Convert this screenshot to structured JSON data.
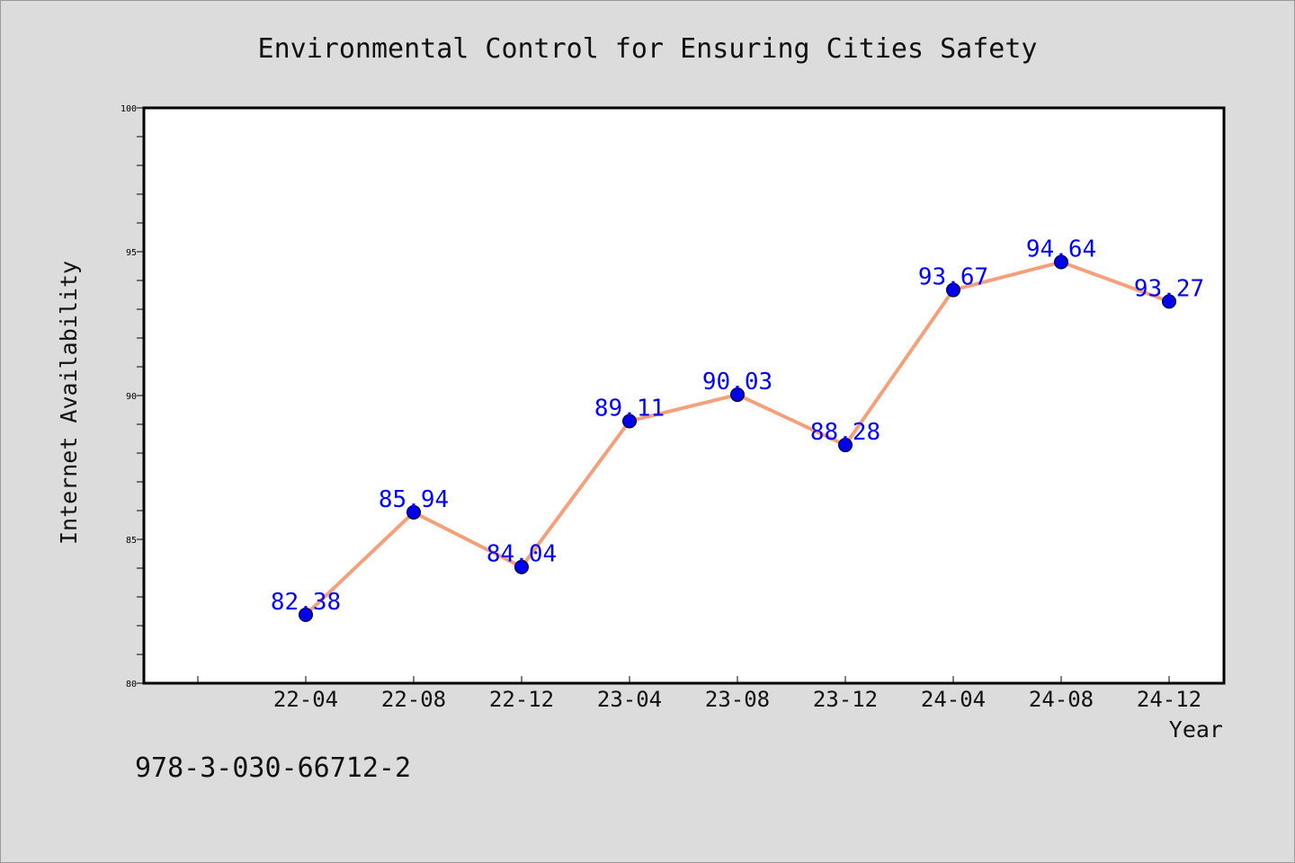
{
  "chart_data": {
    "type": "line",
    "title": "Environmental Control for Ensuring Cities Safety",
    "xlabel": "Year",
    "ylabel": "Internet Availability",
    "categories": [
      "22-04",
      "22-08",
      "22-12",
      "23-04",
      "23-08",
      "23-12",
      "24-04",
      "24-08",
      "24-12"
    ],
    "series": [
      {
        "values": [
          82.38,
          85.94,
          84.04,
          89.11,
          90.03,
          88.28,
          93.67,
          94.64,
          93.27
        ],
        "data_labels": [
          "82.38",
          "85.94",
          "84.04",
          "89.11",
          "90.03",
          "88.28",
          "93.67",
          "94.64",
          "93.27"
        ],
        "line_color": "#f4a07a",
        "marker_color": "#0000ee"
      }
    ],
    "ylim": [
      80,
      100
    ],
    "yticks": [
      "80",
      "85",
      "90",
      "95",
      "100"
    ],
    "grid": false,
    "label_color": "#0000ff"
  },
  "footer_text": "978-3-030-66712-2"
}
